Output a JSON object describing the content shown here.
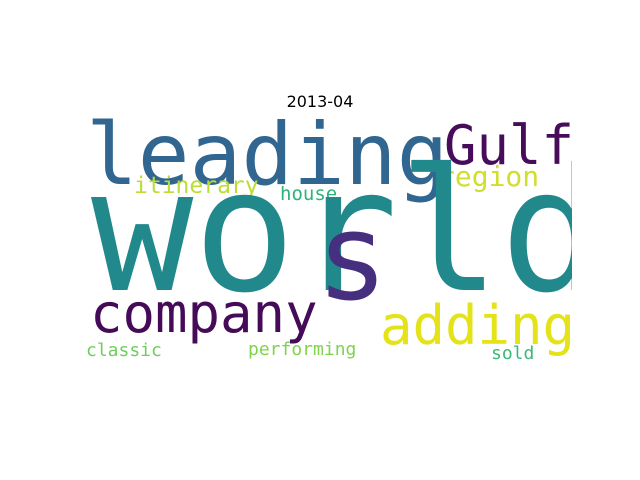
{
  "title": "2013-04",
  "words": {
    "world": {
      "text": "world",
      "color": "#21898c"
    },
    "leading": {
      "text": "leading",
      "color": "#306690"
    },
    "gulf": {
      "text": "Gulf",
      "color": "#470c5a"
    },
    "s": {
      "text": "s",
      "color": "#462f7f"
    },
    "company": {
      "text": "company",
      "color": "#450a58"
    },
    "adding": {
      "text": "adding",
      "color": "#e4e31a"
    },
    "region": {
      "text": "region",
      "color": "#cfdf2b"
    },
    "itinerary": {
      "text": "itinerary",
      "color": "#bcdc38"
    },
    "house": {
      "text": "house",
      "color": "#2db27d"
    },
    "classic": {
      "text": "classic",
      "color": "#6fcd5e"
    },
    "performing": {
      "text": "performing",
      "color": "#7fd34e"
    },
    "sold": {
      "text": "sold",
      "color": "#3aba76"
    }
  }
}
